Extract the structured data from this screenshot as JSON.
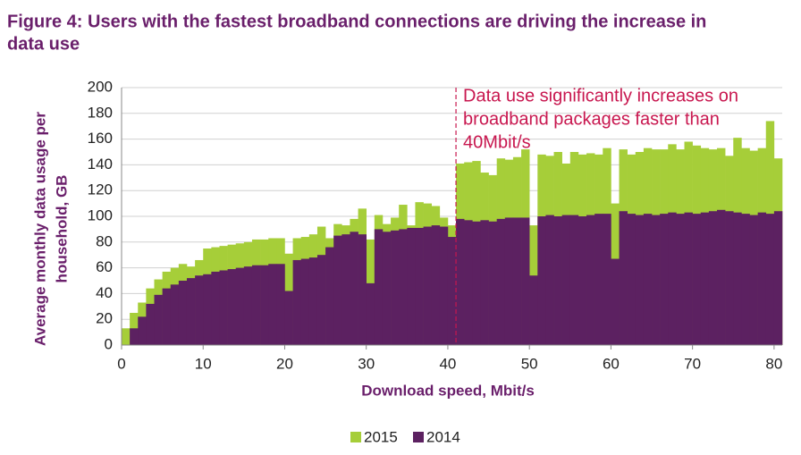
{
  "chart_data": {
    "type": "overlapping_bar",
    "title": [
      "Figure 4: Users with the fastest broadband connections are driving the increase in",
      "data use"
    ],
    "xlabel": "Download speed, Mbit/s",
    "ylabel": [
      "Average monthly data usage per",
      "household, GB"
    ],
    "x": [
      0,
      1,
      2,
      3,
      4,
      5,
      6,
      7,
      8,
      9,
      10,
      11,
      12,
      13,
      14,
      15,
      16,
      17,
      18,
      19,
      20,
      21,
      22,
      23,
      24,
      25,
      26,
      27,
      28,
      29,
      30,
      31,
      32,
      33,
      34,
      35,
      36,
      37,
      38,
      39,
      40,
      41,
      42,
      43,
      44,
      45,
      46,
      47,
      48,
      49,
      50,
      51,
      52,
      53,
      54,
      55,
      56,
      57,
      58,
      59,
      60,
      61,
      62,
      63,
      64,
      65,
      66,
      67,
      68,
      69,
      70,
      71,
      72,
      73,
      74,
      75,
      76,
      77,
      78,
      79,
      80
    ],
    "series": [
      {
        "name": "2015",
        "color": "#a6ce39",
        "values": [
          13,
          25,
          33,
          44,
          51,
          57,
          60,
          63,
          61,
          66,
          75,
          76,
          77,
          78,
          79,
          80,
          82,
          82,
          83,
          83,
          71,
          83,
          84,
          86,
          92,
          83,
          94,
          93,
          98,
          106,
          82,
          101,
          94,
          99,
          109,
          93,
          111,
          110,
          108,
          99,
          93,
          141,
          142,
          143,
          134,
          132,
          145,
          144,
          146,
          152,
          93,
          148,
          147,
          150,
          141,
          150,
          148,
          149,
          148,
          153,
          110,
          152,
          148,
          150,
          153,
          152,
          152,
          156,
          152,
          158,
          155,
          153,
          152,
          153,
          147,
          161,
          153,
          151,
          153,
          174,
          145
        ]
      },
      {
        "name": "2014",
        "color": "#5c2161",
        "values": [
          0,
          13,
          22,
          32,
          39,
          44,
          47,
          50,
          52,
          54,
          55,
          57,
          58,
          59,
          60,
          61,
          62,
          62,
          63,
          63,
          42,
          66,
          67,
          68,
          70,
          76,
          85,
          86,
          88,
          86,
          48,
          90,
          88,
          89,
          90,
          91,
          91,
          92,
          93,
          92,
          84,
          98,
          97,
          96,
          97,
          96,
          98,
          99,
          99,
          99,
          54,
          100,
          101,
          100,
          101,
          101,
          100,
          101,
          102,
          102,
          67,
          104,
          102,
          101,
          102,
          101,
          102,
          103,
          102,
          103,
          102,
          103,
          104,
          105,
          104,
          103,
          102,
          101,
          103,
          102,
          104
        ]
      }
    ],
    "xlim": [
      0,
      81
    ],
    "xticks": [
      0,
      10,
      20,
      30,
      40,
      50,
      60,
      70,
      80
    ],
    "ylim": [
      0,
      200
    ],
    "yticks": [
      0,
      20,
      40,
      60,
      80,
      100,
      120,
      140,
      160,
      180,
      200
    ],
    "grid": true,
    "legend": "bottom",
    "annotation": {
      "x": 41,
      "color": "#c8174f",
      "text": [
        "Data use significantly increases on",
        "broadband packages faster than",
        "40Mbit/s"
      ]
    }
  }
}
